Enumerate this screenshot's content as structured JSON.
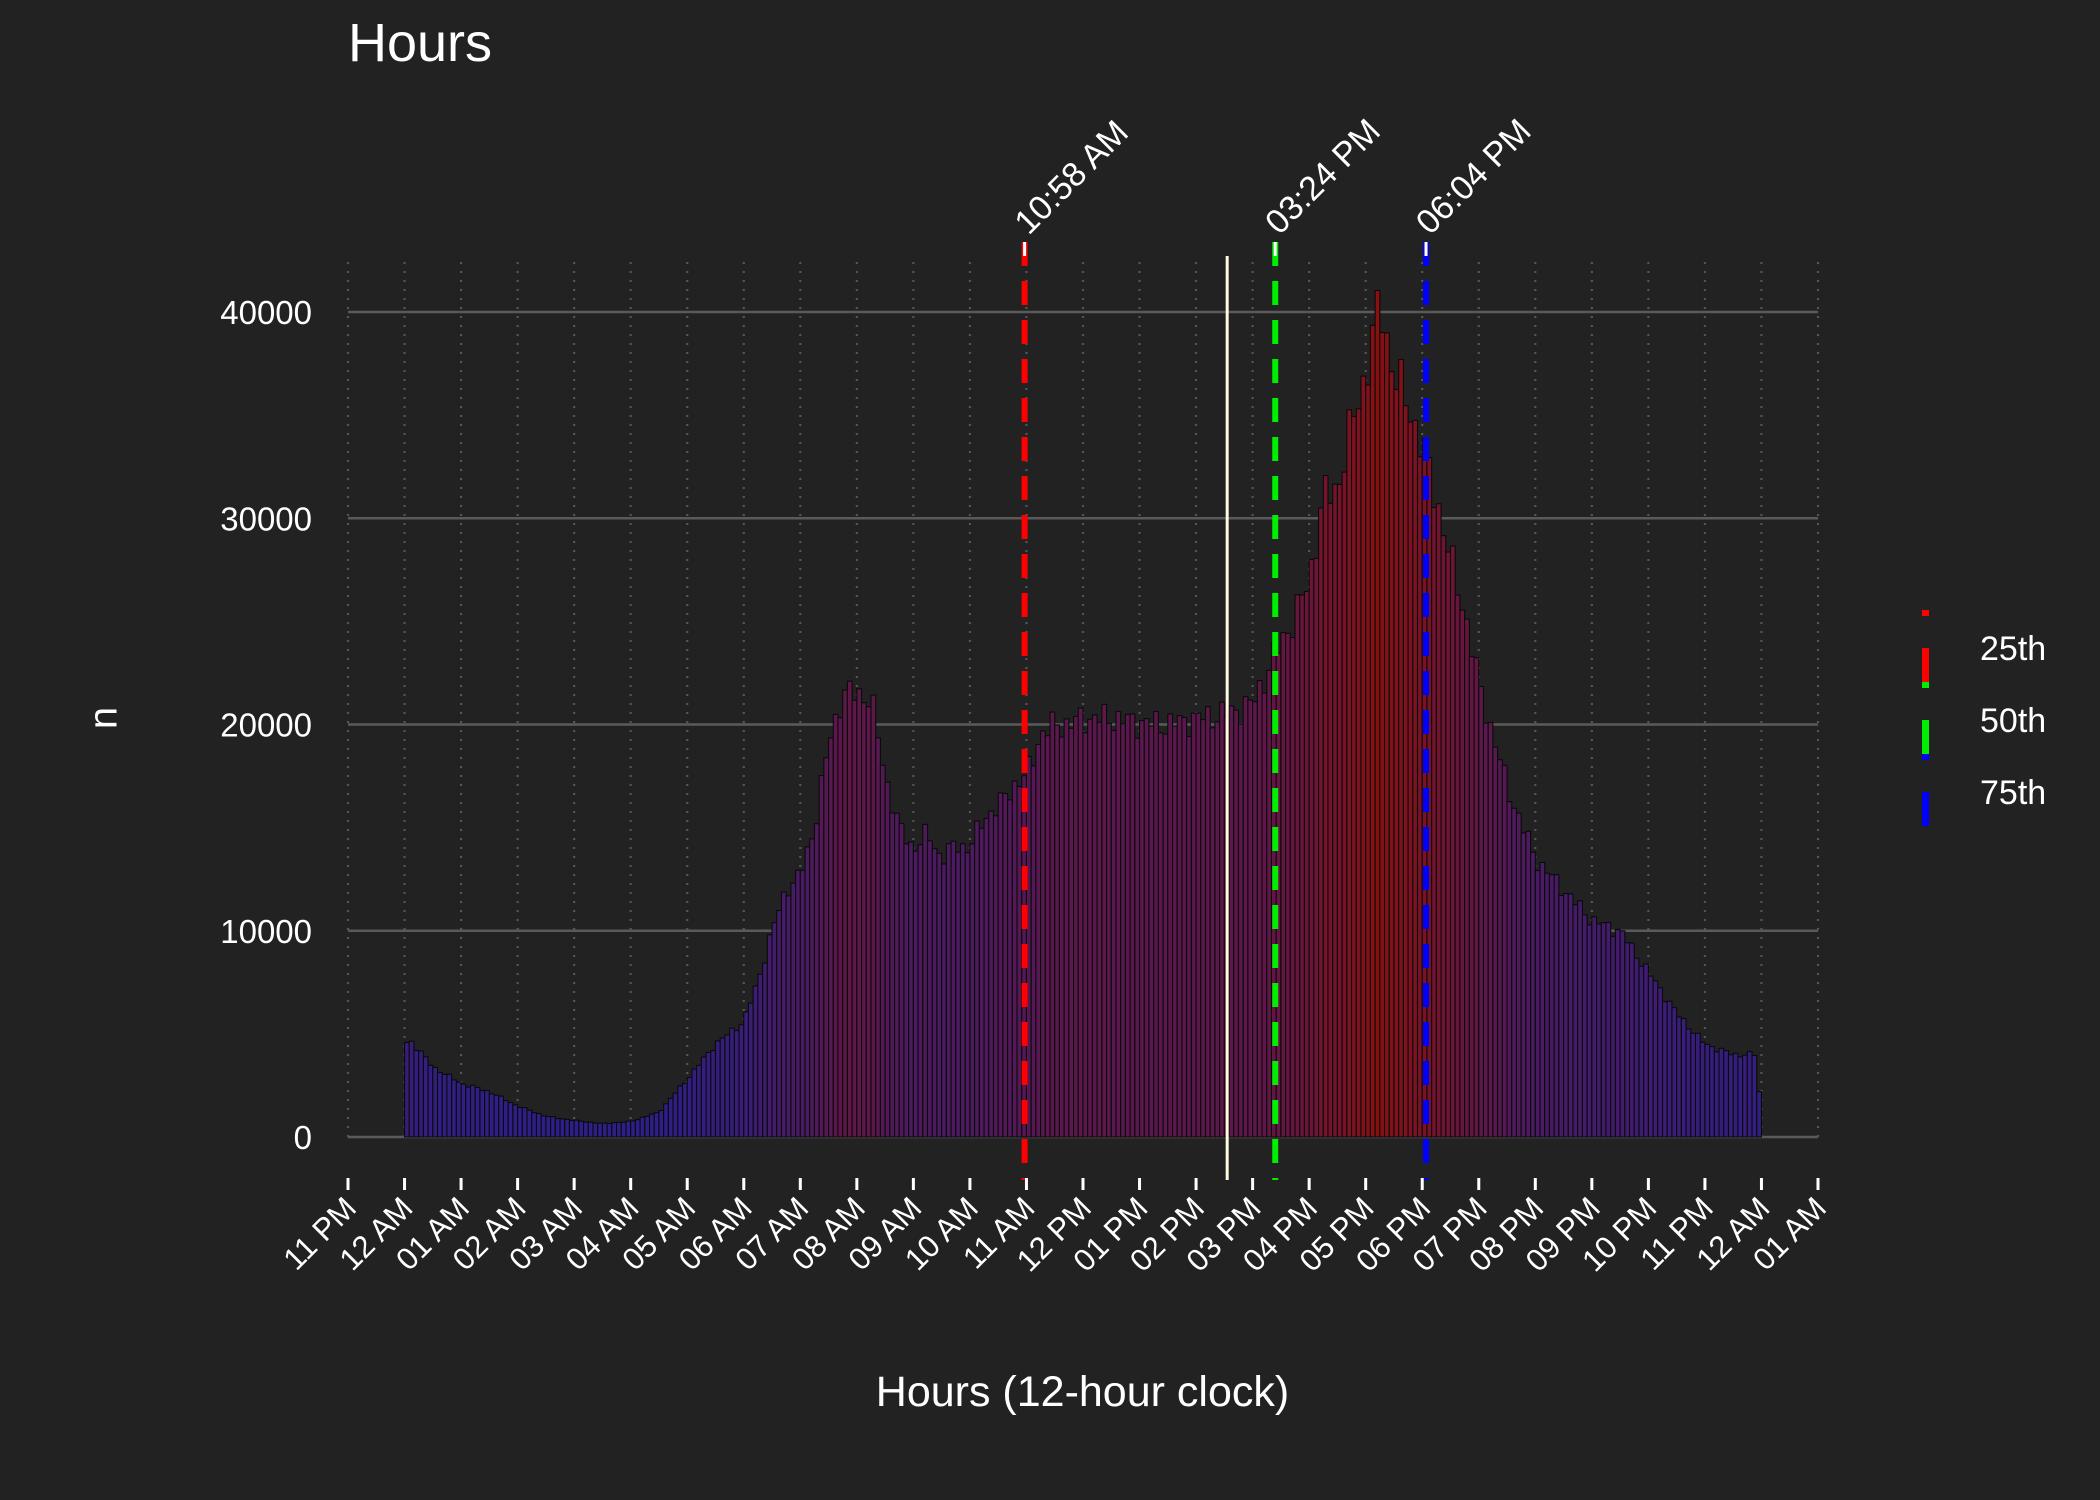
{
  "chart_data": {
    "type": "bar",
    "title": "Hours",
    "xlabel": "Hours (12-hour clock)",
    "ylabel": "n",
    "ylim": [
      0,
      43000
    ],
    "y_ticks": [
      0,
      10000,
      20000,
      30000,
      40000
    ],
    "x_tick_labels": [
      "11 PM",
      "12 AM",
      "01 AM",
      "02 AM",
      "03 AM",
      "04 AM",
      "05 AM",
      "06 AM",
      "07 AM",
      "08 AM",
      "09 AM",
      "10 AM",
      "11 AM",
      "12 PM",
      "01 PM",
      "02 PM",
      "03 PM",
      "04 PM",
      "05 PM",
      "06 PM",
      "07 PM",
      "08 PM",
      "09 PM",
      "10 PM",
      "11 PM",
      "12 AM",
      "01 AM"
    ],
    "x_range_hours": [
      -1,
      25
    ],
    "bin_width_minutes": 5,
    "profile_hours": [
      0,
      0.05,
      0.1,
      0.5,
      1,
      1.5,
      2,
      2.5,
      3,
      3.5,
      4,
      4.5,
      5,
      5.5,
      6,
      6.25,
      6.5,
      6.75,
      7,
      7.25,
      7.5,
      7.75,
      8,
      8.25,
      8.5,
      8.75,
      9,
      9.25,
      9.5,
      9.75,
      10,
      10.25,
      10.5,
      10.75,
      11,
      11.25,
      11.5,
      11.75,
      12,
      12.5,
      13,
      13.5,
      14,
      14.5,
      15,
      15.25,
      15.5,
      15.75,
      16,
      16.25,
      16.5,
      16.75,
      17,
      17.25,
      17.5,
      17.75,
      18,
      18.25,
      18.5,
      18.75,
      19,
      19.5,
      20,
      20.5,
      21,
      21.5,
      22,
      22.5,
      23,
      23.5,
      23.9,
      24
    ],
    "profile_values": [
      2500,
      5000,
      4700,
      3400,
      2600,
      2200,
      1500,
      1000,
      800,
      650,
      750,
      1200,
      2800,
      4500,
      5600,
      7500,
      10000,
      12000,
      12700,
      15000,
      19000,
      21500,
      21500,
      21300,
      17500,
      15000,
      14000,
      14700,
      13500,
      14200,
      14000,
      15500,
      16000,
      17000,
      17500,
      19500,
      20000,
      20000,
      20300,
      20300,
      20100,
      20000,
      20300,
      20500,
      21000,
      22500,
      24000,
      25200,
      27000,
      31000,
      31500,
      34500,
      37000,
      40500,
      37000,
      35500,
      33500,
      31000,
      28000,
      25500,
      22000,
      17000,
      13500,
      12000,
      10500,
      10000,
      8000,
      6000,
      4500,
      4000,
      4000,
      900
    ],
    "vertical_line": {
      "x_hour": 14.55,
      "color": "#fffbe0"
    },
    "quantiles": [
      {
        "name": "25th",
        "time": "10:58 AM",
        "x_hour": 10.967,
        "color": "#ff0000"
      },
      {
        "name": "50th",
        "time": "03:24 PM",
        "x_hour": 15.4,
        "color": "#00ee00"
      },
      {
        "name": "75th",
        "time": "06:04 PM",
        "x_hour": 18.067,
        "color": "#0000ff"
      }
    ],
    "legend_position": "right",
    "grid": true,
    "colors": {
      "background": "#222222",
      "grid_major": "#5a5a5a",
      "grid_minor": "#555555",
      "bar_low": "#2b1f8a",
      "bar_high": "#8a1010",
      "bar_outline": "#0a0a0a",
      "text": "#ffffff"
    }
  }
}
